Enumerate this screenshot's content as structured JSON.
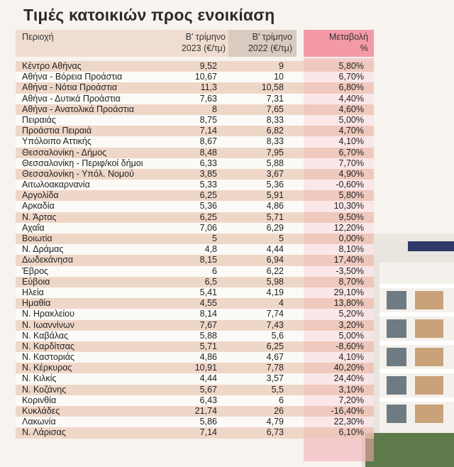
{
  "title": "Τιμές κατοικιών προς ενοικίαση",
  "header": {
    "region": "Περιοχή",
    "q2023_line1": "Β' τρίμηνο",
    "q2023_line2": "2023 (€/τμ)",
    "q2022_line1": "Β' τρίμηνο",
    "q2022_line2": "2022 (€/τμ)",
    "change_line1": "Μεταβολή",
    "change_line2": "%"
  },
  "colors": {
    "header_bg": "#f0ddd1",
    "header_bg_2022": "#d9cbbf",
    "change_column": "#f39aa6",
    "row_stripe": "#ebc8b4"
  },
  "rows": [
    {
      "region": "Κέντρο Αθήνας",
      "q2023": "9,52",
      "q2022": "9",
      "change": "5,80%"
    },
    {
      "region": "Αθήνα - Βόρεια Προάστια",
      "q2023": "10,67",
      "q2022": "10",
      "change": "6,70%"
    },
    {
      "region": "Αθήνα - Νότια Προάστια",
      "q2023": "11,3",
      "q2022": "10,58",
      "change": "6,80%"
    },
    {
      "region": "Αθήνα - Δυτικά Προάστια",
      "q2023": "7,63",
      "q2022": "7,31",
      "change": "4,40%"
    },
    {
      "region": "Αθήνα - Ανατολικά Προάστια",
      "q2023": "8",
      "q2022": "7,65",
      "change": "4,60%"
    },
    {
      "region": "Πειραιάς",
      "q2023": "8,75",
      "q2022": "8,33",
      "change": "5,00%"
    },
    {
      "region": "Προάστια Πειραιά",
      "q2023": "7,14",
      "q2022": "6,82",
      "change": "4,70%"
    },
    {
      "region": "Υπόλοιπο Αττικής",
      "q2023": "8,67",
      "q2022": "8,33",
      "change": "4,10%"
    },
    {
      "region": "Θεσσαλονίκη - Δήμος",
      "q2023": "8,48",
      "q2022": "7,95",
      "change": "6,70%"
    },
    {
      "region": "Θεσσαλονίκη - Περιφ/κοί δήμοι",
      "q2023": "6,33",
      "q2022": "5,88",
      "change": "7,70%"
    },
    {
      "region": "Θεσσαλονίκη - Υπόλ. Νομού",
      "q2023": "3,85",
      "q2022": "3,67",
      "change": "4,90%"
    },
    {
      "region": "Αιτωλοακαρνανία",
      "q2023": "5,33",
      "q2022": "5,36",
      "change": "-0,60%"
    },
    {
      "region": "Αργολίδα",
      "q2023": "6,25",
      "q2022": "5,91",
      "change": "5,80%"
    },
    {
      "region": "Αρκαδία",
      "q2023": "5,36",
      "q2022": "4,86",
      "change": "10,30%"
    },
    {
      "region": "Ν. Άρτας",
      "q2023": "6,25",
      "q2022": "5,71",
      "change": "9,50%"
    },
    {
      "region": "Αχαΐα",
      "q2023": "7,06",
      "q2022": "6,29",
      "change": "12,20%"
    },
    {
      "region": "Βοιωτία",
      "q2023": "5",
      "q2022": "5",
      "change": "0,00%"
    },
    {
      "region": "Ν. Δράμας",
      "q2023": "4,8",
      "q2022": "4,44",
      "change": "8,10%"
    },
    {
      "region": "Δωδεκάνησα",
      "q2023": "8,15",
      "q2022": "6,94",
      "change": "17,40%"
    },
    {
      "region": "Έβρος",
      "q2023": "6",
      "q2022": "6,22",
      "change": "-3,50%"
    },
    {
      "region": "Εύβοια",
      "q2023": "6,5",
      "q2022": "5,98",
      "change": "8,70%"
    },
    {
      "region": "Ηλεία",
      "q2023": "5,41",
      "q2022": "4,19",
      "change": "29,10%"
    },
    {
      "region": "Ημαθία",
      "q2023": "4,55",
      "q2022": "4",
      "change": "13,80%"
    },
    {
      "region": "Ν. Ηρακλείου",
      "q2023": "8,14",
      "q2022": "7,74",
      "change": "5,20%"
    },
    {
      "region": "Ν. Ιωαννίνων",
      "q2023": "7,67",
      "q2022": "7,43",
      "change": "3,20%"
    },
    {
      "region": "Ν. Καβάλας",
      "q2023": "5,88",
      "q2022": "5,6",
      "change": "5,00%"
    },
    {
      "region": "Ν. Καρδίτσας",
      "q2023": "5,71",
      "q2022": "6,25",
      "change": "-8,60%"
    },
    {
      "region": "Ν. Καστοριάς",
      "q2023": "4,86",
      "q2022": "4,67",
      "change": "4,10%"
    },
    {
      "region": "Ν. Κέρκυρας",
      "q2023": "10,91",
      "q2022": "7,78",
      "change": "40,20%"
    },
    {
      "region": "Ν. Κιλκίς",
      "q2023": "4,44",
      "q2022": "3,57",
      "change": "24,40%"
    },
    {
      "region": "Ν. Κοζάνης",
      "q2023": "5,67",
      "q2022": "5,5",
      "change": "3,10%"
    },
    {
      "region": "Κορινθία",
      "q2023": "6,43",
      "q2022": "6",
      "change": "7,20%"
    },
    {
      "region": "Κυκλάδες",
      "q2023": "21,74",
      "q2022": "26",
      "change": "-16,40%"
    },
    {
      "region": "Λακωνία",
      "q2023": "5,86",
      "q2022": "4,79",
      "change": "22,30%"
    },
    {
      "region": "Ν. Λάρισας",
      "q2023": "7,14",
      "q2022": "6,73",
      "change": "6,10%"
    }
  ]
}
